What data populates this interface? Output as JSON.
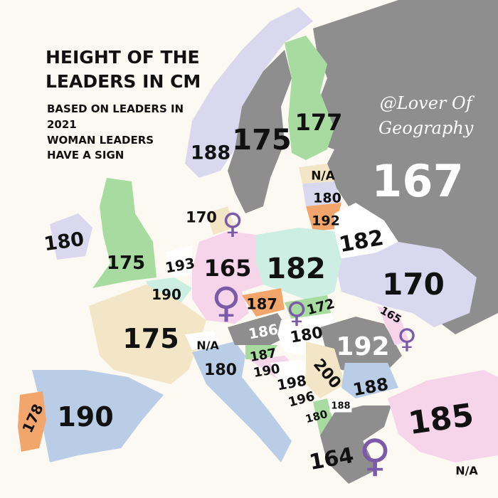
{
  "title": {
    "line1": "HEIGHT OF THE",
    "line2": "LEADERS IN CM"
  },
  "subtitle": {
    "line1": "BASED ON LEADERS IN",
    "line2": "2021",
    "line3": "WOMAN LEADERS",
    "line4": "HAVE A SIGN"
  },
  "credit": {
    "line1": "@Lover Of",
    "line2": "Geography"
  },
  "female_sign": "♀",
  "colors": {
    "background": "#fcf8f2",
    "grey": "#8e8e8e",
    "lavender": "#d9d8ee",
    "green": "#a8dba0",
    "pink": "#f6d4ea",
    "orange": "#f3a66c",
    "mint": "#cdeee2",
    "beige": "#f3e6c6",
    "blue": "#b9cde6",
    "female_sign": "#7b5aa8"
  },
  "labels": {
    "sweden": "175",
    "finland": "177",
    "norway": "188",
    "estonia": "N/A",
    "latvia": "180",
    "lithuania": "192",
    "denmark": "170",
    "ireland": "180",
    "uk": "175",
    "netherlands": "193",
    "germany": "165",
    "poland": "182",
    "belarus": "182",
    "ukraine": "170",
    "belgium": "190",
    "czechia": "187",
    "slovakia": "172",
    "moldova": "165",
    "france": "175",
    "austria": "186",
    "hungary": "180",
    "romania": "192",
    "switzerland": "N/A",
    "italy": "180",
    "slovenia": "187",
    "croatia": "190",
    "bosnia": "198",
    "serbia": "200",
    "bulgaria": "188",
    "montenegro": "196",
    "north_macedonia": "188",
    "albania": "180",
    "portugal": "178",
    "spain": "190",
    "greece": "164",
    "turkey": "185",
    "cyprus": "N/A",
    "russia": "167"
  },
  "female_leaders": [
    "denmark",
    "germany",
    "slovakia",
    "moldova",
    "greece"
  ]
}
